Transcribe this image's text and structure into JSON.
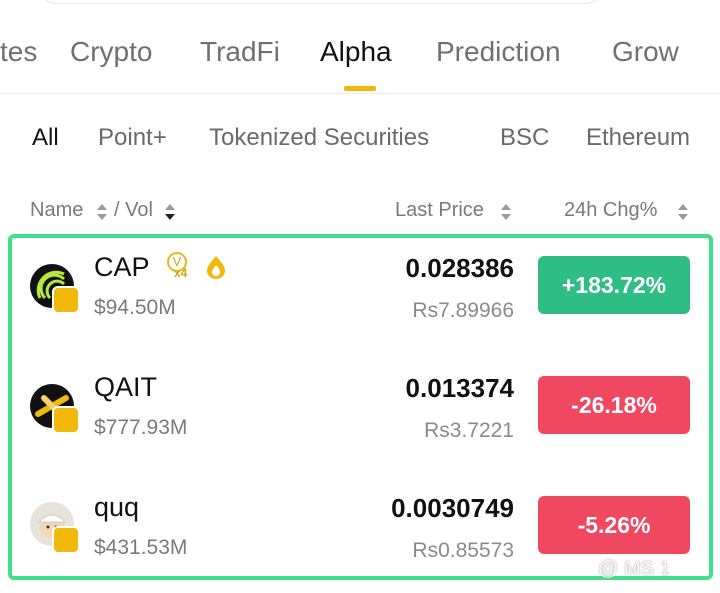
{
  "tabs": [
    "tes",
    "Crypto",
    "TradFi",
    "Alpha",
    "Prediction",
    "Grow"
  ],
  "active_tab": "Alpha",
  "subtabs": [
    "All",
    "Point+",
    "Tokenized Securities",
    "BSC",
    "Ethereum"
  ],
  "active_subtab": "All",
  "columns": {
    "name": "Name",
    "vol": "/ Vol",
    "price": "Last Price",
    "change": "24h Chg%"
  },
  "rows": [
    {
      "symbol": "CAP",
      "badge_letter": "V",
      "badge_multiplier": "x4",
      "volume": "$94.50M",
      "price": "0.028386",
      "fiat_price": "Rs7.89966",
      "change": "+183.72%"
    },
    {
      "symbol": "QAIT",
      "volume": "$777.93M",
      "price": "0.013374",
      "fiat_price": "Rs3.7221",
      "change": "-26.18%"
    },
    {
      "symbol": "quq",
      "volume": "$431.53M",
      "price": "0.0030749",
      "fiat_price": "Rs0.85573",
      "change": "-5.26%"
    }
  ],
  "watermark": "@ MS 1"
}
